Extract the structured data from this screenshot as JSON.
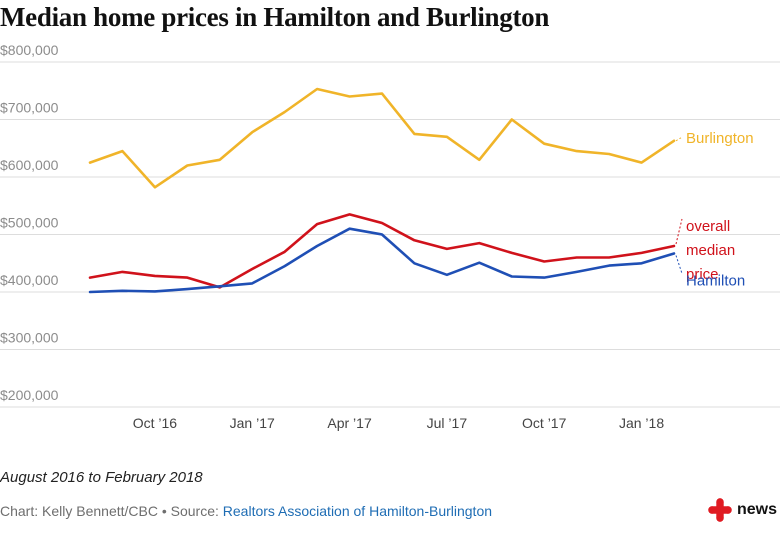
{
  "header": {
    "title": "Median home prices in Hamilton and Burlington"
  },
  "footer": {
    "subtitle": "August 2016 to February 2018",
    "credit_prefix": "Chart: Kelly Bennett/CBC • Source: ",
    "credit_source": "Realtors Association of Hamilton-Burlington",
    "brand": "news",
    "brand_icon": "cbc-gem-logo"
  },
  "colors": {
    "burlington": "#f0b429",
    "overall": "#d0121b",
    "hamilton": "#1f4fb5",
    "grid": "#dddddd",
    "logo": "#e01b22"
  },
  "chart_data": {
    "type": "line",
    "x": [
      "Aug 2016",
      "Sep 2016",
      "Oct 2016",
      "Nov 2016",
      "Dec 2016",
      "Jan 2017",
      "Feb 2017",
      "Mar 2017",
      "Apr 2017",
      "May 2017",
      "Jun 2017",
      "Jul 2017",
      "Aug 2017",
      "Sep 2017",
      "Oct 2017",
      "Nov 2017",
      "Dec 2017",
      "Jan 2018",
      "Feb 2018"
    ],
    "x_tick_labels": [
      {
        "label": "Oct ’16",
        "index": 2
      },
      {
        "label": "Jan ’17",
        "index": 5
      },
      {
        "label": "Apr ’17",
        "index": 8
      },
      {
        "label": "Jul ’17",
        "index": 11
      },
      {
        "label": "Oct ’17",
        "index": 14
      },
      {
        "label": "Jan ’18",
        "index": 17
      }
    ],
    "y_tick_labels": [
      "$200,000",
      "$300,000",
      "$400,000",
      "$500,000",
      "$600,000",
      "$700,000",
      "$800,000"
    ],
    "y_ticks": [
      200000,
      300000,
      400000,
      500000,
      600000,
      700000,
      800000
    ],
    "ylim": [
      200000,
      800000
    ],
    "grid": "horizontal",
    "series": [
      {
        "name": "Burlington",
        "color_key": "burlington",
        "values": [
          625000,
          645000,
          582000,
          620000,
          630000,
          678000,
          713000,
          753000,
          740000,
          745000,
          675000,
          670000,
          630000,
          700000,
          658000,
          645000,
          640000,
          625000,
          663000
        ]
      },
      {
        "name": "overall median price",
        "label_lines": [
          "overall",
          "median",
          "price"
        ],
        "color_key": "overall",
        "values": [
          425000,
          435000,
          428000,
          425000,
          408000,
          440000,
          470000,
          518000,
          535000,
          520000,
          490000,
          475000,
          485000,
          468000,
          453000,
          460000,
          460000,
          468000,
          480000
        ]
      },
      {
        "name": "Hamilton",
        "color_key": "hamilton",
        "values": [
          400000,
          402000,
          401000,
          405000,
          410000,
          415000,
          445000,
          480000,
          510000,
          500000,
          450000,
          430000,
          451000,
          427000,
          425000,
          435000,
          446000,
          450000,
          467000
        ]
      }
    ]
  }
}
